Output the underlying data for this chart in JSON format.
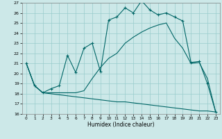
{
  "xlabel": "Humidex (Indice chaleur)",
  "bg_color": "#cce8e8",
  "grid_color": "#99cccc",
  "line_color": "#006666",
  "xlim": [
    -0.5,
    23.5
  ],
  "ylim": [
    16,
    27
  ],
  "yticks": [
    16,
    17,
    18,
    19,
    20,
    21,
    22,
    23,
    24,
    25,
    26,
    27
  ],
  "xticks": [
    0,
    1,
    2,
    3,
    4,
    5,
    6,
    7,
    8,
    9,
    10,
    11,
    12,
    13,
    14,
    15,
    16,
    17,
    18,
    19,
    20,
    21,
    22,
    23
  ],
  "line1_x": [
    0,
    1,
    2,
    3,
    4,
    5,
    6,
    7,
    8,
    9,
    10,
    11,
    12,
    13,
    14,
    15,
    16,
    17,
    18,
    19,
    20,
    21,
    22,
    23
  ],
  "line1_y": [
    21.0,
    18.8,
    18.1,
    18.5,
    18.8,
    21.8,
    20.1,
    22.5,
    23.0,
    20.2,
    25.3,
    25.6,
    26.5,
    26.0,
    27.2,
    26.3,
    25.8,
    26.0,
    25.6,
    25.2,
    21.1,
    21.2,
    19.0,
    16.2
  ],
  "line2_x": [
    0,
    1,
    2,
    3,
    4,
    5,
    6,
    7,
    8,
    9,
    10,
    11,
    12,
    13,
    14,
    15,
    16,
    17,
    18,
    19,
    20,
    21,
    22,
    23
  ],
  "line2_y": [
    21.0,
    18.8,
    18.1,
    18.1,
    18.1,
    18.1,
    18.1,
    18.3,
    19.5,
    20.6,
    21.5,
    22.0,
    23.0,
    23.6,
    24.1,
    24.5,
    24.8,
    25.0,
    23.5,
    22.5,
    21.0,
    21.1,
    19.5,
    16.2
  ],
  "line3_x": [
    0,
    1,
    2,
    3,
    4,
    5,
    6,
    7,
    8,
    9,
    10,
    11,
    12,
    13,
    14,
    15,
    16,
    17,
    18,
    19,
    20,
    21,
    22,
    23
  ],
  "line3_y": [
    21.0,
    18.8,
    18.1,
    18.0,
    17.9,
    17.8,
    17.7,
    17.6,
    17.5,
    17.4,
    17.3,
    17.2,
    17.2,
    17.1,
    17.0,
    16.9,
    16.8,
    16.7,
    16.6,
    16.5,
    16.4,
    16.3,
    16.3,
    16.2
  ]
}
